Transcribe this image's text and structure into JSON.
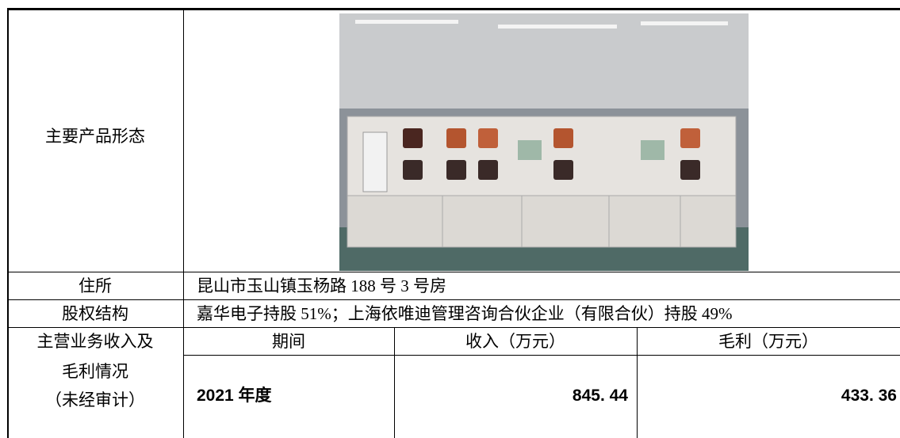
{
  "table": {
    "rows": [
      {
        "label": "主要产品形态"
      },
      {
        "label": "住所",
        "value": "昆山市玉山镇玉杨路 188 号 3 号房"
      },
      {
        "label": "股权结构",
        "value": "嘉华电子持股 51%；上海依唯迪管理咨询合伙企业（有限合伙）持股 49%"
      }
    ],
    "finance": {
      "label_lines": [
        "主营业务收入及",
        "毛利情况",
        "（未经审计）"
      ],
      "headers": [
        "期间",
        "收入（万元）",
        "毛利（万元）"
      ],
      "rows": [
        [
          "2021 年度",
          "845. 44",
          "433. 36"
        ]
      ]
    }
  }
}
